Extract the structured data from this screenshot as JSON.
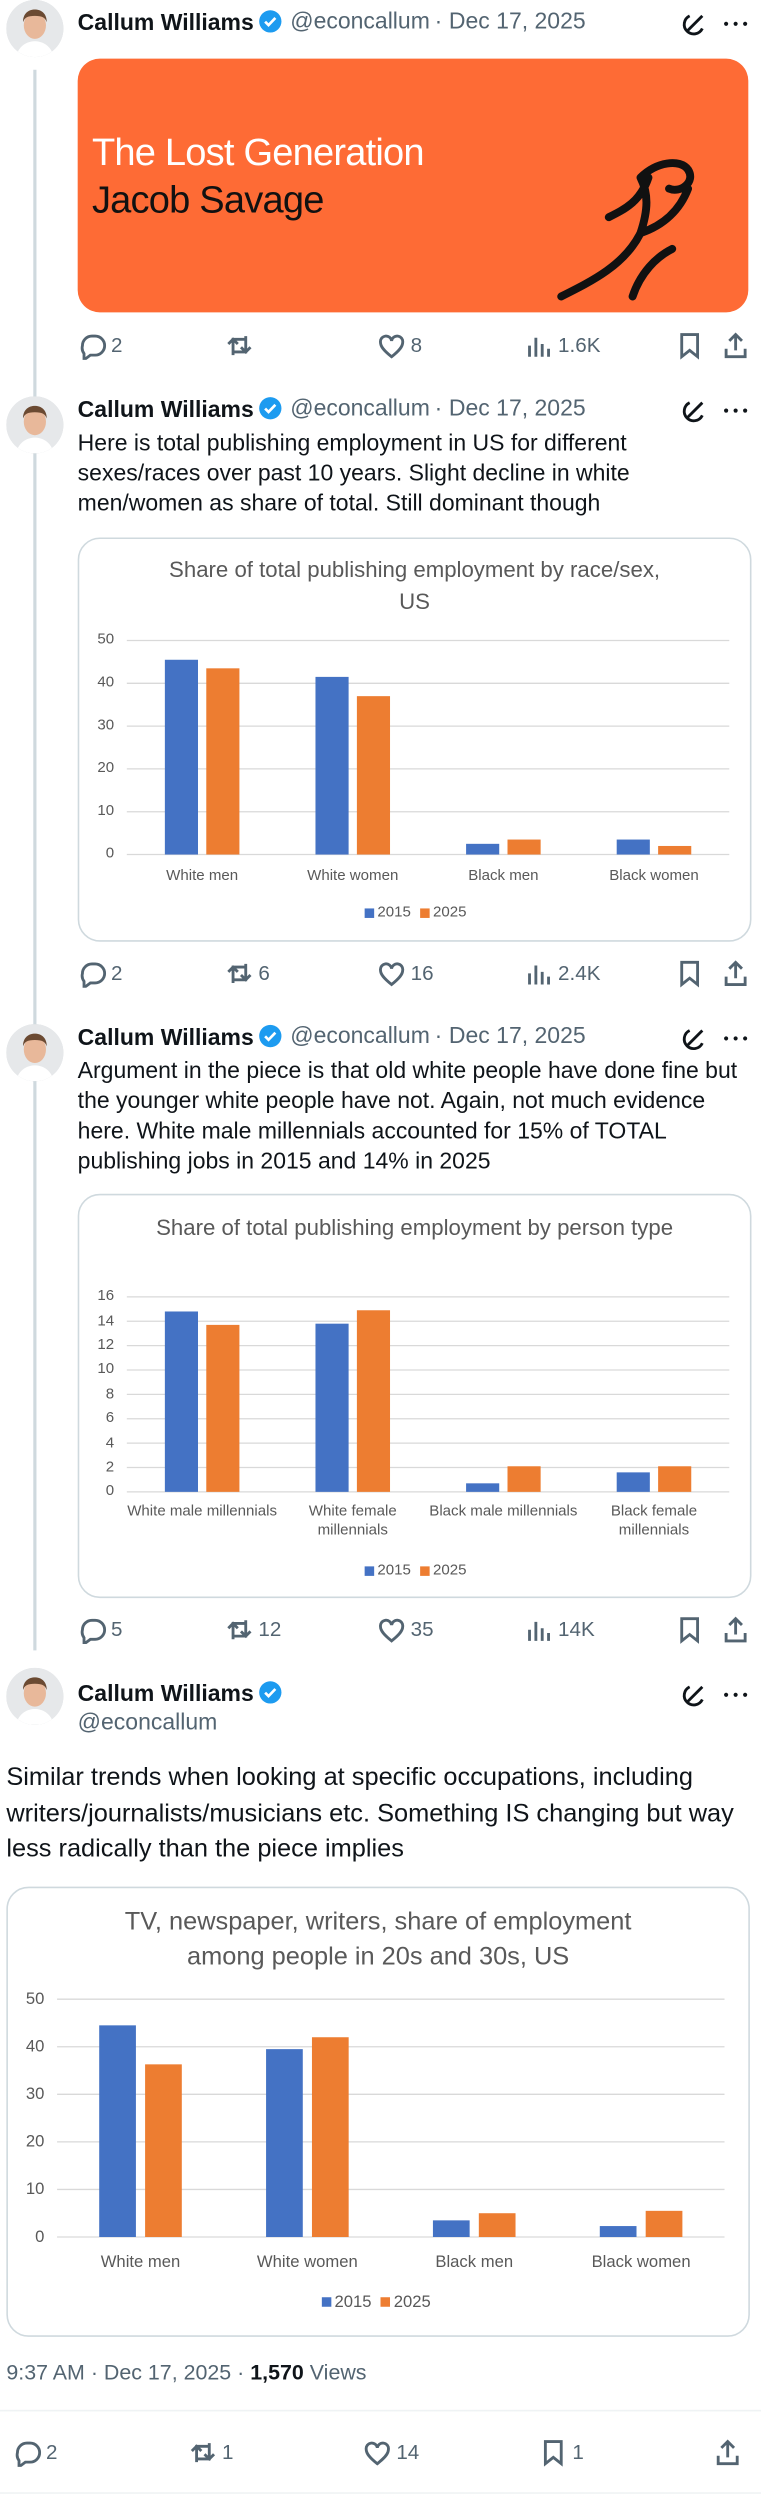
{
  "tweets": [
    {
      "author": "Callum Williams",
      "handle": "@econcallum",
      "date": "Dec 17, 2025",
      "card": {
        "title": "The Lost Generation",
        "subtitle": "Jacob Savage"
      },
      "stats": {
        "replies": 2,
        "likes": 8,
        "views": "1.6K"
      }
    },
    {
      "author": "Callum Williams",
      "handle": "@econcallum",
      "date": "Dec 17, 2025",
      "text": "Here is total publishing employment in US for different sexes/races over past 10 years. Slight decline in white men/women as share of total. Still dominant though",
      "stats": {
        "replies": 2,
        "reposts": 6,
        "likes": 16,
        "views": "2.4K"
      }
    },
    {
      "author": "Callum Williams",
      "handle": "@econcallum",
      "date": "Dec 17, 2025",
      "text": "Argument in the piece is that old white people have done fine but the younger white people have not. Again, not much evidence here. White male millennials accounted for 15% of TOTAL publishing jobs in 2015 and 14% in 2025",
      "stats": {
        "replies": 5,
        "reposts": 12,
        "likes": 35,
        "views": "14K"
      }
    },
    {
      "author": "Callum Williams",
      "handle": "@econcallum",
      "text": "Similar trends when looking at specific occupations, including writers/journalists/musicians etc. Something IS changing but way less radically than the piece implies",
      "time": "9:37 AM",
      "date": "Dec 17, 2025",
      "views": "1,570",
      "views_label": "Views",
      "stats": {
        "replies": 2,
        "reposts": 1,
        "likes": 14,
        "bookmarks": 1
      }
    }
  ],
  "chart_data": [
    {
      "type": "bar",
      "title": "Share of total publishing employment by race/sex, US",
      "categories": [
        "White men",
        "White women",
        "Black men",
        "Black women"
      ],
      "series": [
        {
          "name": "2015",
          "color": "#4472c4",
          "values": [
            45.5,
            41.5,
            2.5,
            3.5
          ]
        },
        {
          "name": "2025",
          "color": "#ed7d31",
          "values": [
            43.5,
            37,
            3.5,
            2
          ]
        }
      ],
      "ylim": [
        0,
        50
      ],
      "yticks": [
        0,
        10,
        20,
        30,
        40,
        50
      ],
      "grid": true,
      "legend": "bottom"
    },
    {
      "type": "bar",
      "title": "Share of total publishing employment by person type",
      "categories": [
        "White male millennials",
        "White female millennials",
        "Black male millennials",
        "Black female millennials"
      ],
      "series": [
        {
          "name": "2015",
          "color": "#4472c4",
          "values": [
            14.8,
            13.8,
            0.7,
            1.6
          ]
        },
        {
          "name": "2025",
          "color": "#ed7d31",
          "values": [
            13.7,
            14.9,
            2.1,
            2.1
          ]
        }
      ],
      "ylim": [
        0,
        16
      ],
      "yticks": [
        0,
        2,
        4,
        6,
        8,
        10,
        12,
        14,
        16
      ],
      "grid": true,
      "legend": "bottom"
    },
    {
      "type": "bar",
      "title": "TV, newspaper, writers, share of employment among people in 20s and 30s, US",
      "categories": [
        "White men",
        "White women",
        "Black men",
        "Black women"
      ],
      "series": [
        {
          "name": "2015",
          "color": "#4472c4",
          "values": [
            44.5,
            39.5,
            3.5,
            2.3
          ]
        },
        {
          "name": "2025",
          "color": "#ed7d31",
          "values": [
            36.3,
            42,
            5,
            5.5
          ]
        }
      ],
      "ylim": [
        0,
        50
      ],
      "yticks": [
        0,
        10,
        20,
        30,
        40,
        50
      ],
      "grid": true,
      "legend": "bottom"
    }
  ]
}
